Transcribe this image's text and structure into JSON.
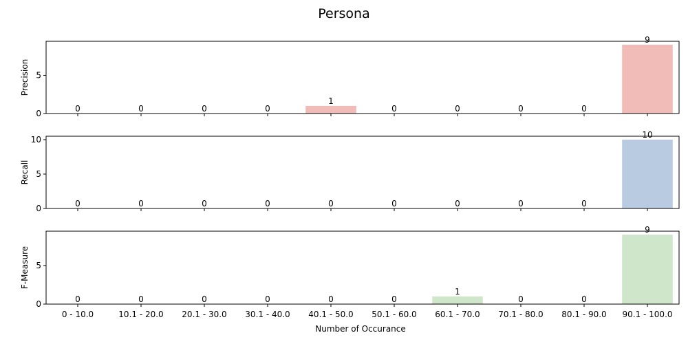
{
  "chart_data": {
    "type": "bar",
    "title": "Persona",
    "xlabel": "Number of Occurance",
    "categories": [
      "0 - 10.0",
      "10.1 - 20.0",
      "20.1 - 30.0",
      "30.1 - 40.0",
      "40.1 - 50.0",
      "50.1 - 60.0",
      "60.1 - 70.0",
      "70.1 - 80.0",
      "80.1 - 90.0",
      "90.1 - 100.0"
    ],
    "panels": [
      {
        "ylabel": "Precision",
        "values": [
          0,
          0,
          0,
          0,
          1,
          0,
          0,
          0,
          0,
          9
        ],
        "ylim": [
          0,
          9.45
        ],
        "yticks": [
          0,
          5
        ],
        "color": "#f1bbb8"
      },
      {
        "ylabel": "Recall",
        "values": [
          0,
          0,
          0,
          0,
          0,
          0,
          0,
          0,
          0,
          10
        ],
        "ylim": [
          0,
          10.5
        ],
        "yticks": [
          0,
          5,
          10
        ],
        "color": "#b9cbe0"
      },
      {
        "ylabel": "F-Measure",
        "values": [
          0,
          0,
          0,
          0,
          0,
          0,
          1,
          0,
          0,
          9
        ],
        "ylim": [
          0,
          9.45
        ],
        "yticks": [
          0,
          5
        ],
        "color": "#d0e6cb"
      }
    ],
    "grid": false,
    "legend": "none"
  }
}
